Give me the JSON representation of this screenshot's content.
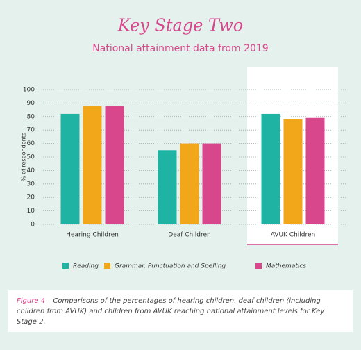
{
  "chart_data": {
    "type": "bar",
    "title": "Key Stage Two",
    "subtitle": "National attainment data from 2019",
    "y_label": "% of respondents",
    "categories": [
      "Hearing Children",
      "Deaf Children",
      "AVUK Children"
    ],
    "series": [
      {
        "name": "Reading",
        "color": "#1fb3a3",
        "values": [
          82,
          55,
          82
        ]
      },
      {
        "name": "Grammar, Punctuation and Spelling",
        "color": "#f2a619",
        "values": [
          88,
          60,
          78
        ]
      },
      {
        "name": "Mathematics",
        "color": "#d8478c",
        "values": [
          88,
          60,
          79
        ]
      }
    ],
    "ylim": [
      0,
      100
    ],
    "yticks": [
      0,
      10,
      20,
      30,
      40,
      50,
      60,
      70,
      80,
      90,
      100
    ],
    "grid": true,
    "legend": "bottom"
  },
  "caption": {
    "label": "Figure 4",
    "text": "– Comparisons of the percentages of hearing children, deaf children (including children from AVUK) and children from AVUK reaching national attainment levels for Key Stage 2."
  }
}
